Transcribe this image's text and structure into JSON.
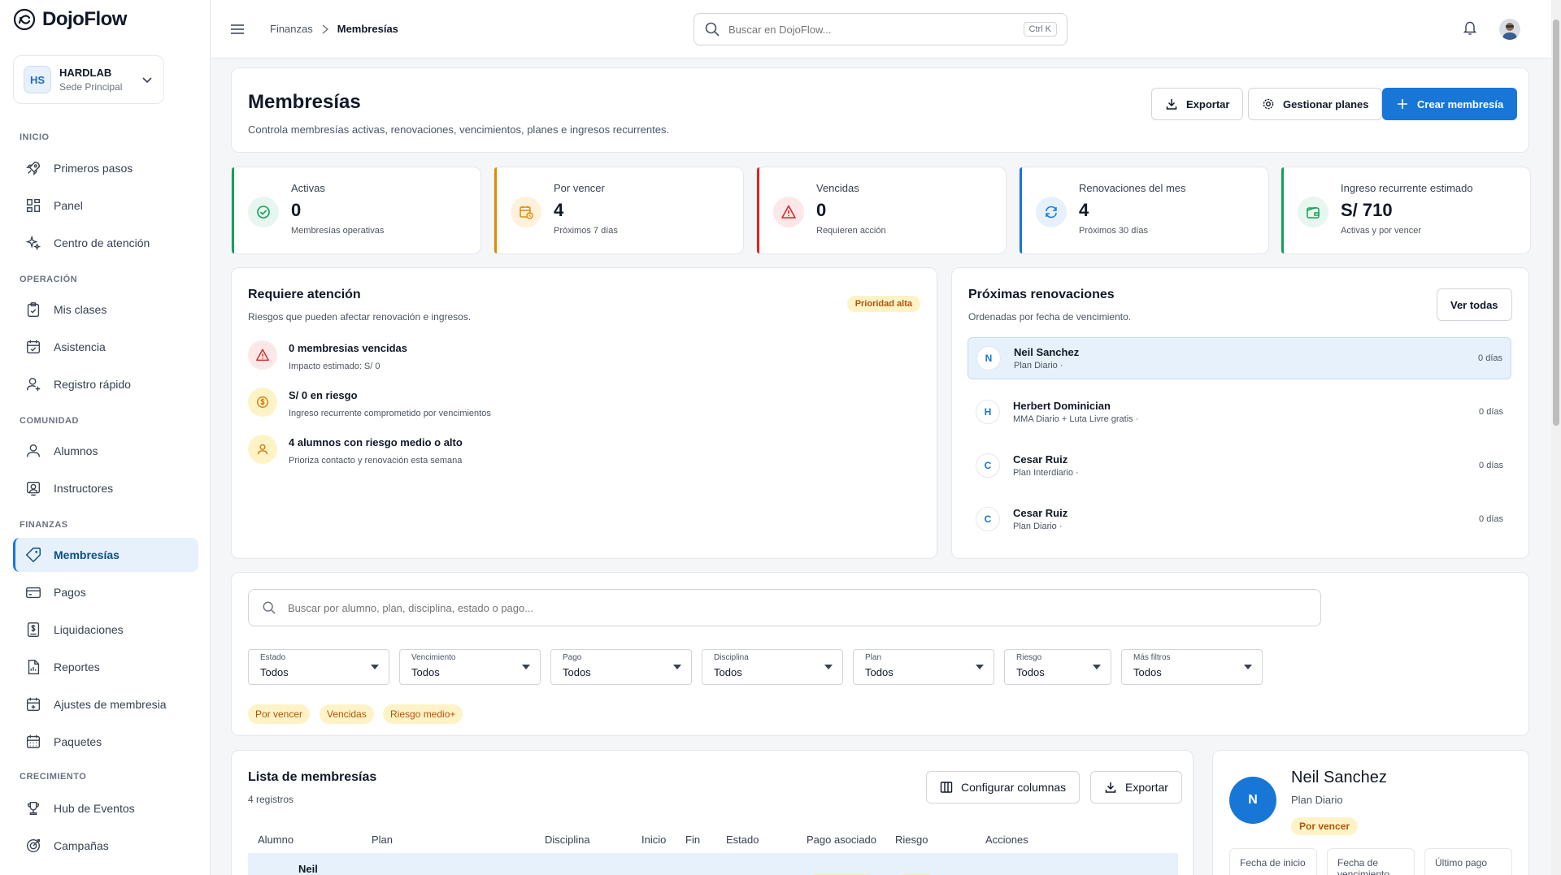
{
  "app": {
    "name": "DojoFlow"
  },
  "org": {
    "initials": "HS",
    "name": "HARDLAB",
    "sub": "Sede Principal"
  },
  "nav": {
    "sections": {
      "inicio": "INICIO",
      "operacion": "OPERACIÓN",
      "comunidad": "COMUNIDAD",
      "finanzas": "FINANZAS",
      "crecimiento": "CRECIMIENTO"
    },
    "items": [
      {
        "label": "Primeros pasos",
        "icon": "rocket-icon"
      },
      {
        "label": "Panel",
        "icon": "grid-icon"
      },
      {
        "label": "Centro de atención",
        "icon": "sparkles-icon"
      },
      {
        "label": "Mis clases",
        "icon": "clipboard-check-icon"
      },
      {
        "label": "Asistencia",
        "icon": "calendar-check-icon"
      },
      {
        "label": "Registro rápido",
        "icon": "user-plus-icon"
      },
      {
        "label": "Alumnos",
        "icon": "user-icon"
      },
      {
        "label": "Instructores",
        "icon": "instructor-icon"
      },
      {
        "label": "Membresías",
        "icon": "tag-icon",
        "active": true
      },
      {
        "label": "Pagos",
        "icon": "credit-card-icon"
      },
      {
        "label": "Liquidaciones",
        "icon": "dollar-doc-icon"
      },
      {
        "label": "Reportes",
        "icon": "report-icon"
      },
      {
        "label": "Ajustes de membresia",
        "icon": "calendar-plus-icon"
      },
      {
        "label": "Paquetes",
        "icon": "calendar-grid-icon"
      },
      {
        "label": "Hub de Eventos",
        "icon": "trophy-icon"
      },
      {
        "label": "Campañas",
        "icon": "target-icon"
      }
    ]
  },
  "topbar": {
    "breadcrumb": [
      "Finanzas",
      "Membresías"
    ],
    "search_placeholder": "Buscar en DojoFlow...",
    "shortcut": "Ctrl K"
  },
  "header": {
    "title": "Membresías",
    "subtitle": "Controla membresías activas, renovaciones, vencimientos, planes e ingresos recurrentes.",
    "export_label": "Exportar",
    "plans_label": "Gestionar planes",
    "create_label": "Crear membresía"
  },
  "kpis": [
    {
      "label": "Activas",
      "value": "0",
      "sub": "Membresías operativas",
      "color": "#15a05a",
      "bg": "#e7f6ee",
      "icon": "check-circle-icon"
    },
    {
      "label": "Por vencer",
      "value": "4",
      "sub": "Próximos 7 días",
      "color": "#e08a00",
      "bg": "#fff1dc",
      "icon": "calendar-clock-icon"
    },
    {
      "label": "Vencidas",
      "value": "0",
      "sub": "Requieren acción",
      "color": "#dc2626",
      "bg": "#fde8e8",
      "icon": "warning-icon"
    },
    {
      "label": "Renovaciones del mes",
      "value": "4",
      "sub": "Próximos 30 días",
      "color": "#1877d6",
      "bg": "#e6f1fb",
      "icon": "refresh-icon"
    },
    {
      "label": "Ingreso recurrente estimado",
      "value": "S/ 710",
      "sub": "Activas y por vencer",
      "color": "#15a05a",
      "bg": "#e7f6ee",
      "icon": "wallet-icon"
    }
  ],
  "attention": {
    "title": "Requiere atención",
    "subtitle": "Riesgos que pueden afectar renovación e ingresos.",
    "badge": "Prioridad alta",
    "items": [
      {
        "title": "0 membresias vencidas",
        "sub": "Impacto estimado: S/ 0",
        "icon": "warning-icon"
      },
      {
        "title": "S/ 0 en riesgo",
        "sub": "Ingreso recurrente comprometido por vencimientos",
        "icon": "coin-icon"
      },
      {
        "title": "4 alumnos con riesgo medio o alto",
        "sub": "Prioriza contacto y renovación esta semana",
        "icon": "user-icon"
      }
    ]
  },
  "renewals": {
    "title": "Próximas renovaciones",
    "subtitle": "Ordenadas por fecha de vencimiento.",
    "view_all": "Ver todas",
    "items": [
      {
        "initial": "N",
        "name": "Neil Sanchez",
        "plan": "Plan Diario ·",
        "days": "0 días"
      },
      {
        "initial": "H",
        "name": "Herbert Dominician",
        "plan": "MMA Diario + Luta Livre gratis ·",
        "days": "0 días"
      },
      {
        "initial": "C",
        "name": "Cesar Ruiz",
        "plan": "Plan Interdiario ·",
        "days": "0 días"
      },
      {
        "initial": "C",
        "name": "Cesar Ruiz",
        "plan": "Plan Diario ·",
        "days": "0 días"
      }
    ]
  },
  "filters": {
    "search_placeholder": "Buscar por alumno, plan, disciplina, estado o pago...",
    "selects": [
      {
        "label": "Estado",
        "value": "Todos"
      },
      {
        "label": "Vencimiento",
        "value": "Todos"
      },
      {
        "label": "Pago",
        "value": "Todos"
      },
      {
        "label": "Disciplina",
        "value": "Todos"
      },
      {
        "label": "Plan",
        "value": "Todos"
      },
      {
        "label": "Riesgo",
        "value": "Todos"
      },
      {
        "label": "Más filtros",
        "value": "Todos"
      }
    ],
    "chips": [
      "Por vencer",
      "Vencidas",
      "Riesgo medio+"
    ]
  },
  "list": {
    "title": "Lista de membresías",
    "count": "4 registros",
    "config_label": "Configurar columnas",
    "export_label": "Exportar",
    "columns": [
      "Alumno",
      "Plan",
      "Disciplina",
      "Inicio",
      "Fin",
      "Estado",
      "Pago asociado",
      "Riesgo",
      "Acciones"
    ],
    "first_row_name": "Neil"
  },
  "detail": {
    "initial": "N",
    "name": "Neil Sanchez",
    "plan": "Plan Diario",
    "status": "Por vencer",
    "fields": [
      "Fecha de inicio",
      "Fecha de vencimiento",
      "Último pago"
    ]
  }
}
